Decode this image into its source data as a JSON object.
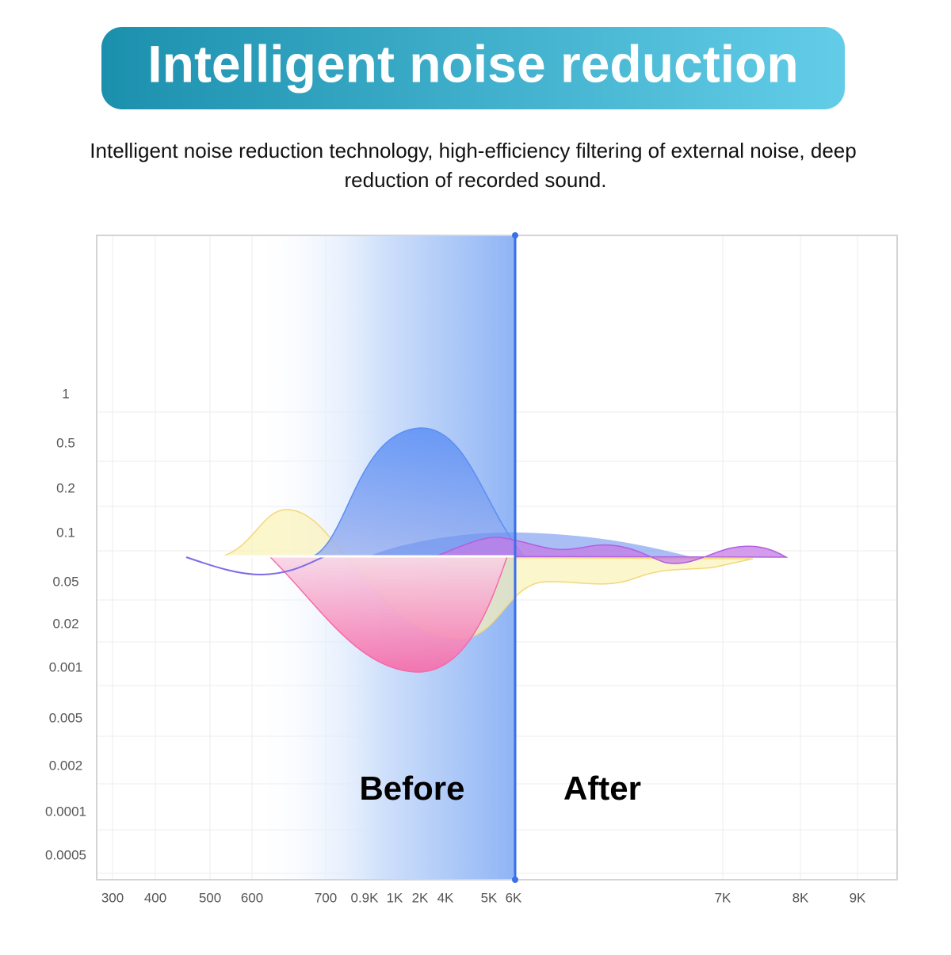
{
  "header": {
    "title": "Intelligent noise reduction",
    "subtitle_lines": [
      "Intelligent noise reduction technology, high-efficiency filtering of external noise, deep",
      "reduction of recorded sound."
    ]
  },
  "graphic": {
    "y_labels": [
      "1",
      "0.5",
      "0.2",
      "0.1",
      "0.05",
      "0.02",
      "0.001",
      "0.005",
      "0.002",
      "0.0001",
      "0.0005"
    ],
    "x_labels": [
      "300",
      "400",
      "500",
      "600",
      "700",
      "0.9K",
      "1K",
      "2K",
      "4K",
      "5K",
      "6K",
      "7K",
      "8K",
      "9K"
    ],
    "before_label": "Before",
    "after_label": "After"
  }
}
